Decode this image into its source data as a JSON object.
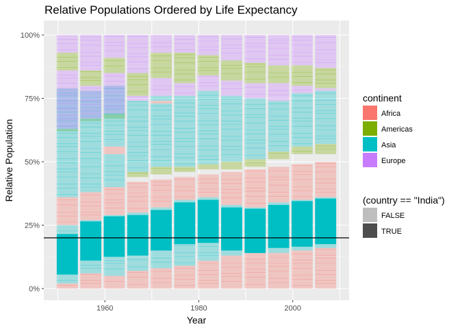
{
  "chart_data": {
    "type": "bar",
    "stacked": true,
    "position": "fill",
    "title": "Relative Populations Ordered by Life Expectancy",
    "xlabel": "Year",
    "ylabel": "Relative Population",
    "x_ticks": [
      1960,
      1980,
      2000
    ],
    "y_ticks": [
      "0%",
      "25%",
      "50%",
      "75%",
      "100%"
    ],
    "xlim": [
      1947,
      2012
    ],
    "ylim": [
      0,
      1
    ],
    "years": [
      1952,
      1957,
      1962,
      1967,
      1972,
      1977,
      1982,
      1987,
      1992,
      1997,
      2002,
      2007
    ],
    "reference_line_y": 0.2,
    "panel_background": "#ebebeb",
    "grid": true,
    "legend_position": "right",
    "continent_colors": {
      "Africa": "#F8766D",
      "Americas": "#7CAE00",
      "Asia": "#00BFC4",
      "Europe": "#C77CFF"
    },
    "india_colors": {
      "FALSE": "#bebebe",
      "TRUE": "#4d4d4d"
    },
    "india_band": {
      "lower": [
        0.055,
        0.11,
        0.125,
        0.13,
        0.15,
        0.175,
        0.18,
        0.15,
        0.14,
        0.16,
        0.165,
        0.175
      ],
      "upper": [
        0.215,
        0.265,
        0.285,
        0.29,
        0.31,
        0.34,
        0.35,
        0.32,
        0.315,
        0.33,
        0.345,
        0.355
      ]
    },
    "series": [
      {
        "name": "Africa",
        "segments": [
          [
            [
              0.0,
              0.02
            ],
            [
              0.25,
              0.36
            ]
          ],
          [
            [
              0.0,
              0.06
            ],
            [
              0.27,
              0.38
            ]
          ],
          [
            [
              0.0,
              0.05
            ],
            [
              0.29,
              0.4
            ],
            [
              0.53,
              0.56
            ]
          ],
          [
            [
              0.0,
              0.07
            ],
            [
              0.3,
              0.42
            ]
          ],
          [
            [
              0.0,
              0.08
            ],
            [
              0.32,
              0.43
            ],
            [
              0.73,
              0.74
            ]
          ],
          [
            [
              0.0,
              0.09
            ],
            [
              0.35,
              0.44
            ]
          ],
          [
            [
              0.0,
              0.11
            ],
            [
              0.36,
              0.45
            ]
          ],
          [
            [
              0.0,
              0.13
            ],
            [
              0.33,
              0.46
            ]
          ],
          [
            [
              0.0,
              0.14
            ],
            [
              0.32,
              0.47
            ]
          ],
          [
            [
              0.0,
              0.14
            ],
            [
              0.34,
              0.48
            ]
          ],
          [
            [
              0.0,
              0.15
            ],
            [
              0.35,
              0.49
            ]
          ],
          [
            [
              0.0,
              0.16
            ],
            [
              0.36,
              0.5
            ]
          ]
        ]
      },
      {
        "name": "Americas",
        "segments": [
          [
            [
              0.86,
              0.93
            ],
            [
              0.62,
              0.63
            ]
          ],
          [
            [
              0.8,
              0.86
            ],
            [
              0.66,
              0.67
            ]
          ],
          [
            [
              0.85,
              0.91
            ],
            [
              0.67,
              0.69
            ]
          ],
          [
            [
              0.76,
              0.85
            ],
            [
              0.44,
              0.46
            ]
          ],
          [
            [
              0.83,
              0.93
            ],
            [
              0.45,
              0.48
            ]
          ],
          [
            [
              0.81,
              0.93
            ],
            [
              0.46,
              0.48
            ]
          ],
          [
            [
              0.84,
              0.92
            ],
            [
              0.47,
              0.49
            ]
          ],
          [
            [
              0.82,
              0.9
            ],
            [
              0.47,
              0.5
            ]
          ],
          [
            [
              0.81,
              0.89
            ],
            [
              0.48,
              0.51
            ]
          ],
          [
            [
              0.81,
              0.88
            ],
            [
              0.51,
              0.54
            ]
          ],
          [
            [
              0.8,
              0.88
            ],
            [
              0.53,
              0.56
            ]
          ],
          [
            [
              0.79,
              0.87
            ],
            [
              0.53,
              0.57
            ]
          ]
        ]
      },
      {
        "name": "Asia",
        "segments": [
          [
            [
              0.02,
              0.055
            ],
            [
              0.215,
              0.25
            ],
            [
              0.36,
              0.79
            ]
          ],
          [
            [
              0.06,
              0.11
            ],
            [
              0.265,
              0.27
            ],
            [
              0.38,
              0.78
            ]
          ],
          [
            [
              0.05,
              0.125
            ],
            [
              0.285,
              0.29
            ],
            [
              0.4,
              0.53
            ],
            [
              0.56,
              0.8
            ]
          ],
          [
            [
              0.07,
              0.13
            ],
            [
              0.29,
              0.3
            ],
            [
              0.46,
              0.74
            ]
          ],
          [
            [
              0.08,
              0.15
            ],
            [
              0.31,
              0.32
            ],
            [
              0.48,
              0.73
            ],
            [
              0.74,
              0.76
            ]
          ],
          [
            [
              0.09,
              0.175
            ],
            [
              0.34,
              0.35
            ],
            [
              0.48,
              0.76
            ]
          ],
          [
            [
              0.11,
              0.18
            ],
            [
              0.35,
              0.36
            ],
            [
              0.49,
              0.78
            ]
          ],
          [
            [
              0.13,
              0.15
            ],
            [
              0.32,
              0.33
            ],
            [
              0.5,
              0.76
            ]
          ],
          [
            [
              0.14,
              0.14
            ],
            [
              0.315,
              0.32
            ],
            [
              0.51,
              0.75
            ]
          ],
          [
            [
              0.14,
              0.16
            ],
            [
              0.33,
              0.34
            ],
            [
              0.54,
              0.74
            ]
          ],
          [
            [
              0.15,
              0.165
            ],
            [
              0.345,
              0.35
            ],
            [
              0.56,
              0.77
            ]
          ],
          [
            [
              0.16,
              0.175
            ],
            [
              0.355,
              0.36
            ],
            [
              0.57,
              0.78
            ]
          ]
        ]
      },
      {
        "name": "Europe",
        "segments": [
          [
            [
              0.63,
              0.86
            ],
            [
              0.93,
              1.0
            ]
          ],
          [
            [
              0.67,
              0.8
            ],
            [
              0.86,
              1.0
            ]
          ],
          [
            [
              0.69,
              0.85
            ],
            [
              0.91,
              1.0
            ]
          ],
          [
            [
              0.74,
              0.76
            ],
            [
              0.85,
              1.0
            ]
          ],
          [
            [
              0.76,
              0.83
            ],
            [
              0.93,
              1.0
            ]
          ],
          [
            [
              0.76,
              0.81
            ],
            [
              0.93,
              1.0
            ]
          ],
          [
            [
              0.78,
              0.84
            ],
            [
              0.92,
              1.0
            ]
          ],
          [
            [
              0.76,
              0.82
            ],
            [
              0.9,
              1.0
            ]
          ],
          [
            [
              0.75,
              0.81
            ],
            [
              0.89,
              1.0
            ]
          ],
          [
            [
              0.74,
              0.81
            ],
            [
              0.88,
              1.0
            ]
          ],
          [
            [
              0.77,
              0.8
            ],
            [
              0.88,
              1.0
            ]
          ],
          [
            [
              0.78,
              0.79
            ],
            [
              0.87,
              1.0
            ]
          ]
        ]
      }
    ],
    "legends": [
      {
        "title": "continent",
        "items": [
          {
            "label": "Africa",
            "color": "#F8766D"
          },
          {
            "label": "Americas",
            "color": "#7CAE00"
          },
          {
            "label": "Asia",
            "color": "#00BFC4"
          },
          {
            "label": "Europe",
            "color": "#C77CFF"
          }
        ]
      },
      {
        "title": "(country == \"India\")",
        "items": [
          {
            "label": "FALSE",
            "color": "#bebebe"
          },
          {
            "label": "TRUE",
            "color": "#4d4d4d"
          }
        ]
      }
    ]
  }
}
